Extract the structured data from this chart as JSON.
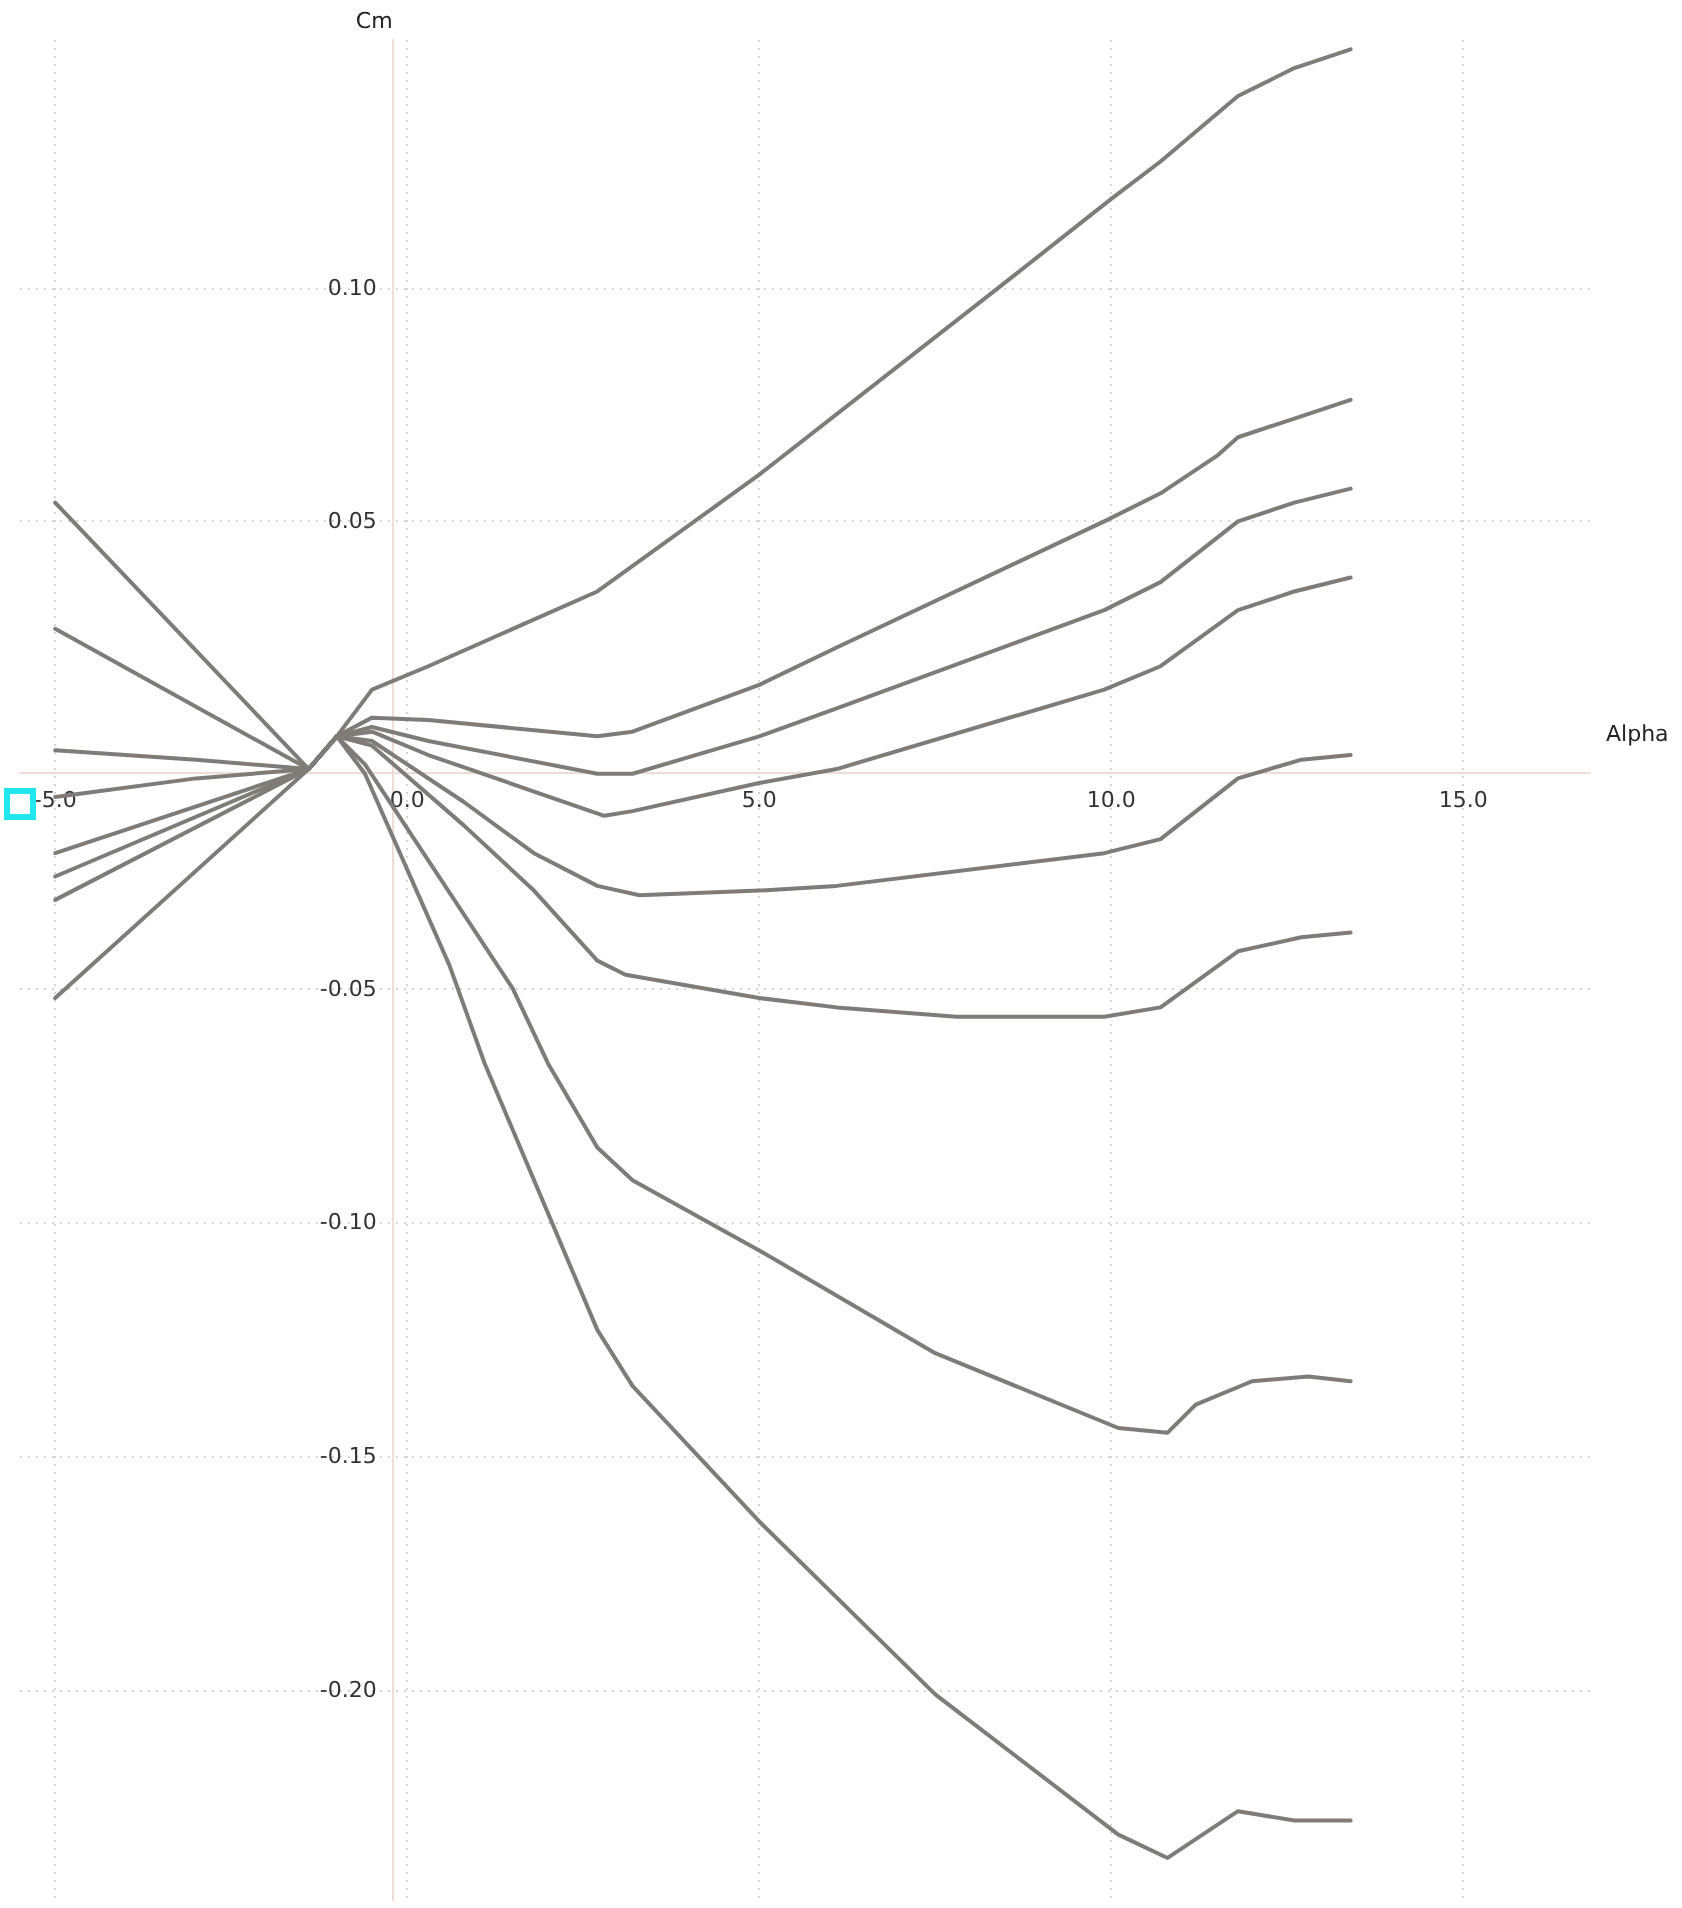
{
  "chart_data": {
    "type": "line",
    "xlabel": "Alpha",
    "ylabel": "Cm",
    "xlim": [
      -5.5,
      16.8
    ],
    "ylim": [
      -0.245,
      0.153
    ],
    "xticks": [
      {
        "value": -5,
        "label": "-5.0"
      },
      {
        "value": 0,
        "label": "0.0"
      },
      {
        "value": 5,
        "label": "5.0"
      },
      {
        "value": 10,
        "label": "10.0"
      },
      {
        "value": 15,
        "label": "15.0"
      }
    ],
    "yticks": [
      {
        "value": -0.2,
        "label": "-0.20"
      },
      {
        "value": -0.15,
        "label": "-0.15"
      },
      {
        "value": -0.1,
        "label": "-0.10"
      },
      {
        "value": -0.05,
        "label": "-0.05"
      },
      {
        "value": 0.05,
        "label": "0.05"
      },
      {
        "value": 0.1,
        "label": "0.10"
      }
    ],
    "grid": true,
    "marker": "none",
    "line_style": "solid",
    "series": [
      {
        "color": "#7f7b77",
        "x": [
          -5.0,
          -1.4,
          -1.0,
          -0.5,
          0.3,
          2.7,
          5.0,
          8.4,
          10.0,
          10.7,
          11.8,
          12.6,
          13.4
        ],
        "values": [
          -0.052,
          -0.003,
          0.004,
          0.014,
          0.019,
          0.035,
          0.06,
          0.1,
          0.119,
          0.127,
          0.141,
          0.147,
          0.151
        ]
      },
      {
        "color": "#7f7b77",
        "x": [
          -5.0,
          -1.4,
          -1.0,
          -0.5,
          0.3,
          2.7,
          3.2,
          5.0,
          6.1,
          9.9,
          10.7,
          11.5,
          11.8,
          12.6,
          13.4
        ],
        "values": [
          -0.031,
          -0.003,
          0.004,
          0.008,
          0.0075,
          0.004,
          0.005,
          0.015,
          0.023,
          0.05,
          0.056,
          0.064,
          0.068,
          0.072,
          0.076
        ]
      },
      {
        "color": "#7f7b77",
        "x": [
          -5.0,
          -1.4,
          -1.0,
          -0.5,
          0.3,
          2.7,
          3.2,
          5.0,
          6.1,
          9.9,
          10.7,
          11.8,
          12.6,
          13.4
        ],
        "values": [
          -0.026,
          -0.003,
          0.004,
          0.006,
          0.003,
          -0.004,
          -0.004,
          0.004,
          0.01,
          0.031,
          0.037,
          0.05,
          0.054,
          0.057
        ]
      },
      {
        "color": "#7f7b77",
        "x": [
          -5.0,
          -1.4,
          -1.0,
          -0.5,
          0.3,
          2.8,
          3.2,
          5.0,
          6.1,
          9.9,
          10.7,
          11.8,
          12.6,
          13.4
        ],
        "values": [
          -0.021,
          -0.003,
          0.004,
          0.005,
          0.0,
          -0.013,
          -0.012,
          -0.006,
          -0.003,
          0.014,
          0.019,
          0.031,
          0.035,
          0.038
        ]
      },
      {
        "color": "#7f7b77",
        "x": [
          -5.0,
          -3.0,
          -1.4,
          -1.0,
          -0.5,
          0.8,
          1.8,
          2.7,
          3.3,
          5.0,
          6.1,
          9.9,
          10.7,
          11.8,
          12.7,
          13.4
        ],
        "values": [
          -0.009,
          -0.005,
          -0.003,
          0.004,
          0.003,
          -0.01,
          -0.021,
          -0.028,
          -0.03,
          -0.029,
          -0.028,
          -0.021,
          -0.018,
          -0.005,
          -0.001,
          0.0
        ]
      },
      {
        "color": "#7f7b77",
        "x": [
          -5.0,
          -3.0,
          -1.4,
          -1.0,
          -0.5,
          0.8,
          1.8,
          2.7,
          3.1,
          5.0,
          6.1,
          7.8,
          9.9,
          10.7,
          11.8,
          12.7,
          13.4
        ],
        "values": [
          0.001,
          -0.001,
          -0.003,
          0.004,
          0.002,
          -0.015,
          -0.029,
          -0.044,
          -0.047,
          -0.052,
          -0.054,
          -0.056,
          -0.056,
          -0.054,
          -0.042,
          -0.039,
          -0.038
        ]
      },
      {
        "color": "#7f7b77",
        "x": [
          -5.0,
          -1.4,
          -1.0,
          -0.6,
          1.5,
          2.0,
          2.7,
          3.2,
          5.0,
          7.5,
          10.1,
          10.8,
          11.2,
          12.0,
          12.8,
          13.4
        ],
        "values": [
          0.027,
          -0.003,
          0.004,
          -0.002,
          -0.05,
          -0.066,
          -0.084,
          -0.091,
          -0.106,
          -0.128,
          -0.144,
          -0.145,
          -0.139,
          -0.134,
          -0.133,
          -0.134
        ]
      },
      {
        "color": "#7f7b77",
        "x": [
          -5.0,
          -1.4,
          -1.0,
          -0.6,
          0.6,
          1.1,
          2.7,
          3.2,
          5.0,
          7.5,
          10.1,
          10.8,
          11.8,
          12.6,
          13.4
        ],
        "values": [
          0.054,
          -0.003,
          0.004,
          -0.004,
          -0.045,
          -0.066,
          -0.123,
          -0.135,
          -0.164,
          -0.201,
          -0.231,
          -0.236,
          -0.226,
          -0.228,
          -0.228
        ]
      }
    ]
  }
}
